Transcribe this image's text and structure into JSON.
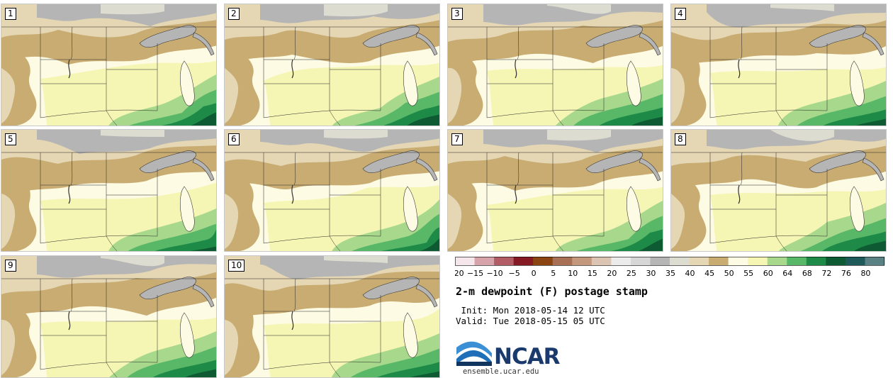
{
  "panels": [
    {
      "label": "1"
    },
    {
      "label": "2"
    },
    {
      "label": "3"
    },
    {
      "label": "4"
    },
    {
      "label": "5"
    },
    {
      "label": "6"
    },
    {
      "label": "7"
    },
    {
      "label": "8"
    },
    {
      "label": "9"
    },
    {
      "label": "10"
    }
  ],
  "legend": {
    "ticks": [
      "−20",
      "−15",
      "−10",
      "−5",
      "0",
      "5",
      "10",
      "15",
      "20",
      "25",
      "30",
      "35",
      "40",
      "45",
      "50",
      "55",
      "60",
      "64",
      "68",
      "72",
      "76",
      "80"
    ],
    "colors": [
      "#f4e6ea",
      "#d7a3ab",
      "#b25c66",
      "#861a24",
      "#8b4513",
      "#a87055",
      "#c4987d",
      "#dcc4b2",
      "#ebebeb",
      "#d6d6d6",
      "#b5b5b5",
      "#dcdcd0",
      "#e6d7b4",
      "#c8ac72",
      "#fdfbe4",
      "#f5f6b4",
      "#a8d88c",
      "#58b868",
      "#1e8a48",
      "#0e5a32",
      "#1e5a5a",
      "#5a8284"
    ]
  },
  "map_colors": {
    "tan": "#c8ac72",
    "light_tan": "#e6d7b4",
    "gray": "#b5b5b5",
    "light_gray": "#dcdcd0",
    "cream": "#fdfbe4",
    "pale_yellow": "#f5f6b4",
    "light_green": "#a8d88c",
    "green": "#58b868",
    "dark_green": "#1e8a48",
    "darkest_green": "#0e5a32"
  },
  "title": "2-m dewpoint (F) postage stamp",
  "init": " Init: Mon 2018-05-14 12 UTC",
  "valid": "Valid: Tue 2018-05-15 05 UTC",
  "logo": {
    "text": "NCAR",
    "url": "ensemble.ucar.edu"
  }
}
